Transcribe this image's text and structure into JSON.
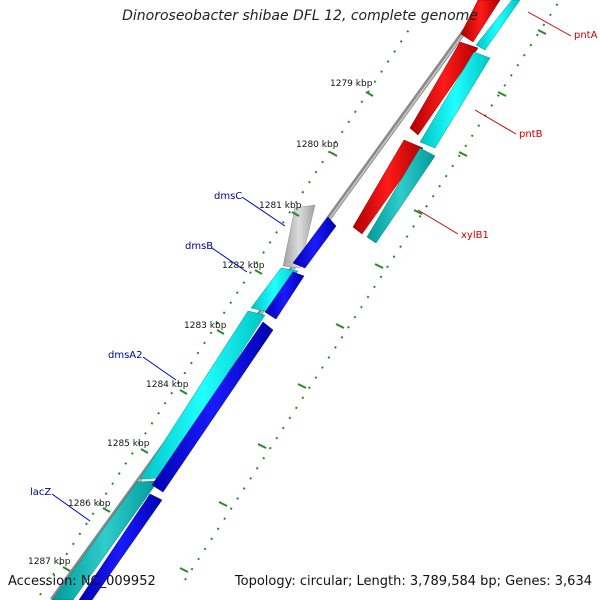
{
  "title": "Dinoroseobacter shibae DFL 12, complete genome",
  "footer": {
    "accession": "Accession: NC_009952",
    "summary": "Topology: circular; Length: 3,789,584 bp; Genes: 3,634"
  },
  "colors": {
    "background": "#ffffff",
    "forward_gene": "#0000ee",
    "reverse_gene": "#ee0000",
    "cds": "#00eeee",
    "trna_gray": "#c0c0c0",
    "tick": "#2a8a2a",
    "label_forward": "#000099",
    "label_reverse": "#cc0000"
  },
  "kbp_ticks": [
    {
      "label": "1279 kbp"
    },
    {
      "label": "1280 kbp"
    },
    {
      "label": "1281 kbp"
    },
    {
      "label": "1282 kbp"
    },
    {
      "label": "1283 kbp"
    },
    {
      "label": "1284 kbp"
    },
    {
      "label": "1285 kbp"
    },
    {
      "label": "1286 kbp"
    },
    {
      "label": "1287 kbp"
    }
  ],
  "genes_left": [
    {
      "label": "dmsC"
    },
    {
      "label": "dmsB"
    },
    {
      "label": "dmsA2"
    },
    {
      "label": "lacZ"
    }
  ],
  "genes_right": [
    {
      "label": "pntA"
    },
    {
      "label": "pntB"
    },
    {
      "label": "xylB1"
    }
  ]
}
